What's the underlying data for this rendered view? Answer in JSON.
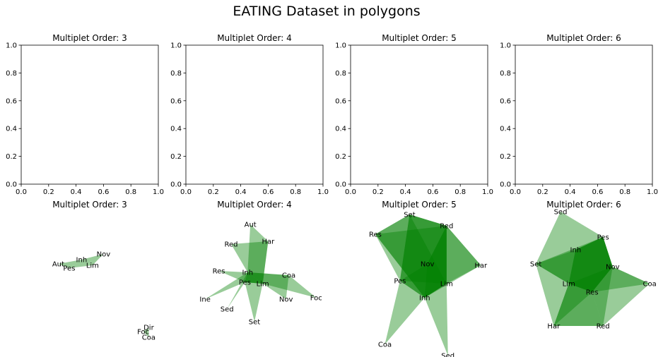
{
  "figure": {
    "title": "EATING Dataset in polygons"
  },
  "chart_data": [
    {
      "type": "line",
      "title": "Multiplet Order: 3",
      "xlim": [
        0,
        1
      ],
      "ylim": [
        0,
        1
      ],
      "xticks": [
        "0.0",
        "0.2",
        "0.4",
        "0.6",
        "0.8",
        "1.0"
      ],
      "yticks": [
        "0.0",
        "0.2",
        "0.4",
        "0.6",
        "0.8",
        "1.0"
      ],
      "series": []
    },
    {
      "type": "line",
      "title": "Multiplet Order: 4",
      "xlim": [
        0,
        1
      ],
      "ylim": [
        0,
        1
      ],
      "xticks": [
        "0.0",
        "0.2",
        "0.4",
        "0.6",
        "0.8",
        "1.0"
      ],
      "yticks": [
        "0.0",
        "0.2",
        "0.4",
        "0.6",
        "0.8",
        "1.0"
      ],
      "series": []
    },
    {
      "type": "line",
      "title": "Multiplet Order: 5",
      "xlim": [
        0,
        1
      ],
      "ylim": [
        0,
        1
      ],
      "xticks": [
        "0.0",
        "0.2",
        "0.4",
        "0.6",
        "0.8",
        "1.0"
      ],
      "yticks": [
        "0.0",
        "0.2",
        "0.4",
        "0.6",
        "0.8",
        "1.0"
      ],
      "series": []
    },
    {
      "type": "line",
      "title": "Multiplet Order: 6",
      "xlim": [
        0,
        1
      ],
      "ylim": [
        0,
        1
      ],
      "xticks": [
        "0.0",
        "0.2",
        "0.4",
        "0.6",
        "0.8",
        "1.0"
      ],
      "yticks": [
        "0.0",
        "0.2",
        "0.4",
        "0.6",
        "0.8",
        "1.0"
      ],
      "series": []
    },
    {
      "type": "polygon-network",
      "title": "Multiplet Order: 3",
      "fill_color": "#008000",
      "nodes": [
        {
          "name": "Nov",
          "x": 0.6,
          "y": 0.7
        },
        {
          "name": "Inh",
          "x": 0.44,
          "y": 0.66
        },
        {
          "name": "Aut",
          "x": 0.27,
          "y": 0.63
        },
        {
          "name": "Lim",
          "x": 0.52,
          "y": 0.62
        },
        {
          "name": "Pes",
          "x": 0.35,
          "y": 0.6
        },
        {
          "name": "Dir",
          "x": 0.93,
          "y": 0.18
        },
        {
          "name": "Foc",
          "x": 0.89,
          "y": 0.15
        },
        {
          "name": "Coa",
          "x": 0.93,
          "y": 0.11
        }
      ],
      "polygons": [
        [
          "Inh",
          "Aut",
          "Pes"
        ],
        [
          "Inh",
          "Lim",
          "Pes"
        ],
        [
          "Nov",
          "Inh",
          "Lim"
        ],
        [
          "Dir",
          "Foc",
          "Coa"
        ]
      ]
    },
    {
      "type": "polygon-network",
      "title": "Multiplet Order: 4",
      "fill_color": "#008000",
      "nodes": [
        {
          "name": "Aut",
          "x": 0.47,
          "y": 0.91
        },
        {
          "name": "Har",
          "x": 0.6,
          "y": 0.79
        },
        {
          "name": "Red",
          "x": 0.33,
          "y": 0.77
        },
        {
          "name": "Res",
          "x": 0.24,
          "y": 0.58
        },
        {
          "name": "Inh",
          "x": 0.45,
          "y": 0.57
        },
        {
          "name": "Coa",
          "x": 0.75,
          "y": 0.55
        },
        {
          "name": "Pes",
          "x": 0.43,
          "y": 0.5
        },
        {
          "name": "Lim",
          "x": 0.56,
          "y": 0.49
        },
        {
          "name": "Foc",
          "x": 0.95,
          "y": 0.39
        },
        {
          "name": "Ine",
          "x": 0.14,
          "y": 0.38
        },
        {
          "name": "Nov",
          "x": 0.73,
          "y": 0.38
        },
        {
          "name": "Sed",
          "x": 0.3,
          "y": 0.31
        },
        {
          "name": "Set",
          "x": 0.5,
          "y": 0.22
        }
      ],
      "polygons": [
        [
          "Aut",
          "Inh",
          "Lim",
          "Har"
        ],
        [
          "Red",
          "Inh",
          "Lim",
          "Har"
        ],
        [
          "Res",
          "Inh",
          "Lim",
          "Pes"
        ],
        [
          "Inh",
          "Coa",
          "Foc",
          "Lim"
        ],
        [
          "Ine",
          "Inh",
          "Lim",
          "Pes"
        ],
        [
          "Sed",
          "Inh",
          "Lim",
          "Pes"
        ],
        [
          "Set",
          "Pes",
          "Inh",
          "Lim"
        ],
        [
          "Nov",
          "Lim",
          "Inh",
          "Coa"
        ]
      ]
    },
    {
      "type": "polygon-network",
      "title": "Multiplet Order: 5",
      "fill_color": "#008000",
      "nodes": [
        {
          "name": "Set",
          "x": 0.43,
          "y": 0.98
        },
        {
          "name": "Red",
          "x": 0.7,
          "y": 0.9
        },
        {
          "name": "Res",
          "x": 0.18,
          "y": 0.84
        },
        {
          "name": "Har",
          "x": 0.95,
          "y": 0.62
        },
        {
          "name": "Nov",
          "x": 0.56,
          "y": 0.63
        },
        {
          "name": "Pes",
          "x": 0.36,
          "y": 0.51
        },
        {
          "name": "Lim",
          "x": 0.7,
          "y": 0.49
        },
        {
          "name": "Inh",
          "x": 0.54,
          "y": 0.39
        },
        {
          "name": "Coa",
          "x": 0.25,
          "y": 0.06
        },
        {
          "name": "Sed",
          "x": 0.71,
          "y": -0.02
        }
      ],
      "polygons": [
        [
          "Set",
          "Red",
          "Lim",
          "Inh",
          "Res"
        ],
        [
          "Res",
          "Set",
          "Red",
          "Lim",
          "Inh"
        ],
        [
          "Set",
          "Red",
          "Har",
          "Lim",
          "Pes"
        ],
        [
          "Res",
          "Red",
          "Lim",
          "Inh",
          "Pes"
        ],
        [
          "Red",
          "Har",
          "Inh",
          "Pes",
          "Nov"
        ],
        [
          "Set",
          "Lim",
          "Inh",
          "Coa",
          "Pes"
        ],
        [
          "Nov",
          "Red",
          "Lim",
          "Sed",
          "Inh"
        ]
      ]
    },
    {
      "type": "polygon-network",
      "title": "Multiplet Order: 6",
      "fill_color": "#008000",
      "nodes": [
        {
          "name": "Sed",
          "x": 0.33,
          "y": 1.0
        },
        {
          "name": "Pes",
          "x": 0.64,
          "y": 0.82
        },
        {
          "name": "Inh",
          "x": 0.44,
          "y": 0.73
        },
        {
          "name": "Set",
          "x": 0.15,
          "y": 0.63
        },
        {
          "name": "Nov",
          "x": 0.71,
          "y": 0.61
        },
        {
          "name": "Coa",
          "x": 0.98,
          "y": 0.49
        },
        {
          "name": "Lim",
          "x": 0.39,
          "y": 0.49
        },
        {
          "name": "Res",
          "x": 0.56,
          "y": 0.43
        },
        {
          "name": "Har",
          "x": 0.28,
          "y": 0.19
        },
        {
          "name": "Red",
          "x": 0.64,
          "y": 0.19
        }
      ],
      "polygons": [
        [
          "Sed",
          "Pes",
          "Nov",
          "Res",
          "Lim",
          "Set"
        ],
        [
          "Set",
          "Inh",
          "Pes",
          "Nov",
          "Res",
          "Lim"
        ],
        [
          "Inh",
          "Pes",
          "Nov",
          "Red",
          "Har",
          "Lim"
        ],
        [
          "Lim",
          "Nov",
          "Coa",
          "Red",
          "Res",
          "Har"
        ],
        [
          "Set",
          "Pes",
          "Nov",
          "Res",
          "Red",
          "Har"
        ],
        [
          "Inh",
          "Pes",
          "Nov",
          "Coa",
          "Res",
          "Lim"
        ]
      ]
    }
  ]
}
